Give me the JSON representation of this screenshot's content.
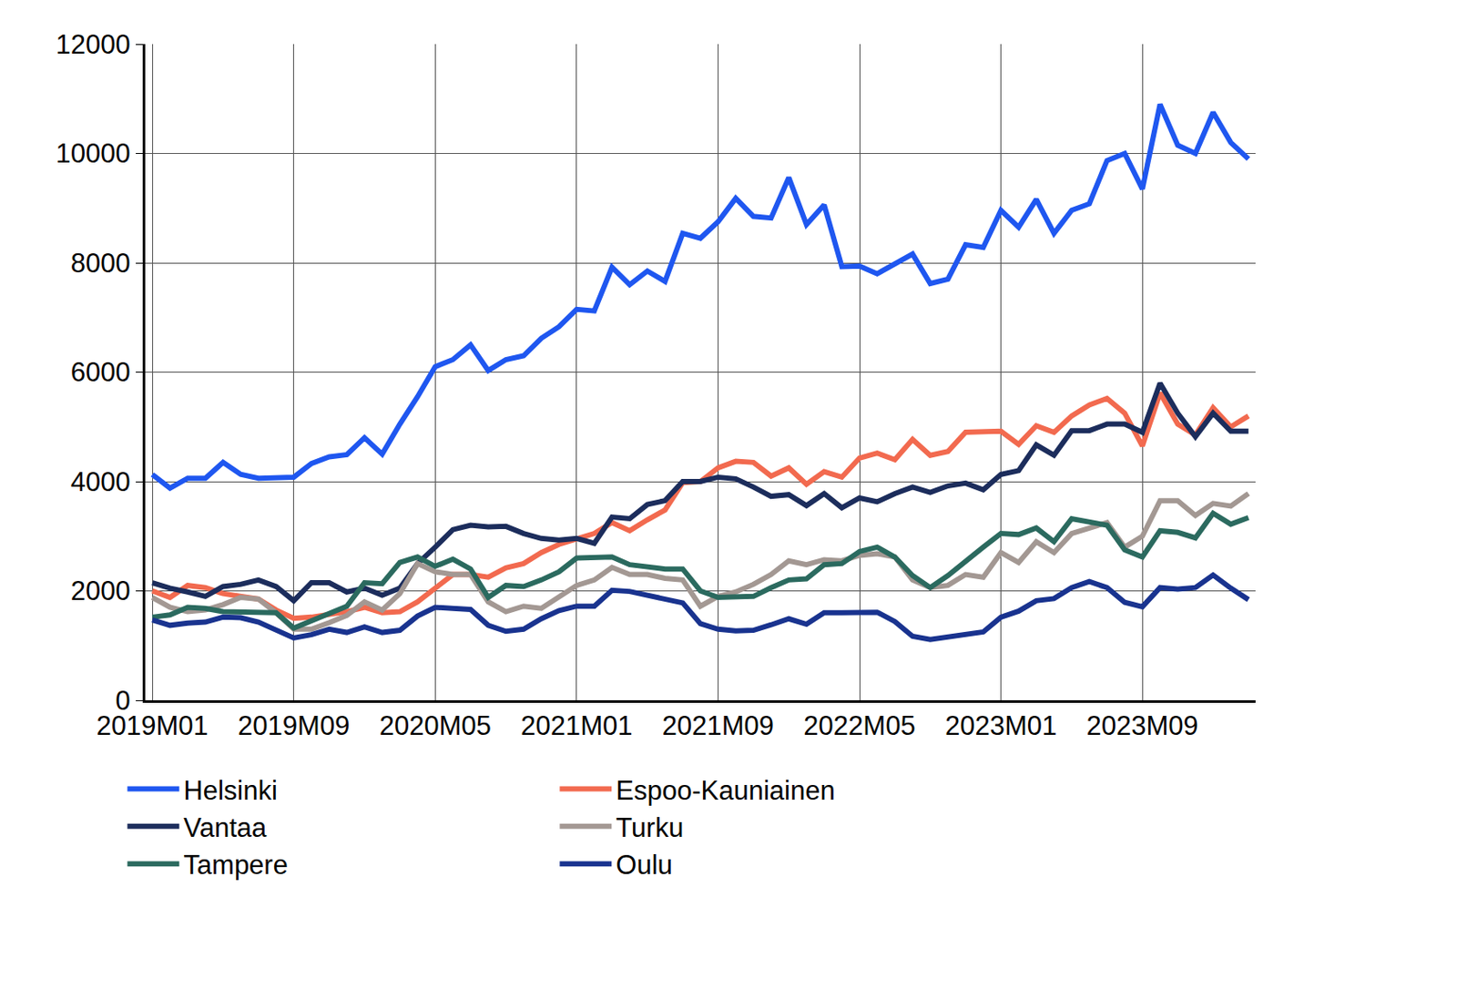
{
  "chart_data": {
    "type": "line",
    "categories": [
      "2019M01",
      null,
      null,
      null,
      null,
      null,
      null,
      null,
      "2019M09",
      null,
      null,
      null,
      null,
      null,
      null,
      null,
      "2020M05",
      null,
      null,
      null,
      null,
      null,
      null,
      null,
      "2021M01",
      null,
      null,
      null,
      null,
      null,
      null,
      null,
      "2021M09",
      null,
      null,
      null,
      null,
      null,
      null,
      null,
      "2022M05",
      null,
      null,
      null,
      null,
      null,
      null,
      null,
      "2023M01",
      null,
      null,
      null,
      null,
      null,
      null,
      null,
      "2023M09",
      null,
      null,
      null,
      null,
      null,
      null
    ],
    "series": [
      {
        "name": "Helsinki",
        "color": "#1f57f0",
        "values": [
          4130,
          3880,
          4060,
          4060,
          4350,
          4130,
          4060,
          4080,
          4080,
          4330,
          4450,
          4490,
          4800,
          4500,
          5050,
          5550,
          6100,
          6230,
          6500,
          6030,
          6230,
          6300,
          6620,
          6830,
          7150,
          7120,
          7920,
          7600,
          7850,
          7660,
          8540,
          8450,
          8750,
          9180,
          8850,
          8820,
          9560,
          8700,
          9060,
          7930,
          7940,
          7800,
          7970,
          8160,
          7620,
          7700,
          8330,
          8280,
          8960,
          8650,
          9160,
          8540,
          8960,
          9080,
          9870,
          10000,
          9350,
          10900,
          10150,
          10000,
          10750,
          10200,
          9900
        ]
      },
      {
        "name": "Espoo-Kauniainen",
        "color": "#f26a4f",
        "values": [
          2000,
          1880,
          2100,
          2060,
          1950,
          1900,
          1850,
          1650,
          1500,
          1520,
          1560,
          1620,
          1700,
          1600,
          1620,
          1800,
          2050,
          2300,
          2300,
          2250,
          2420,
          2500,
          2700,
          2850,
          2950,
          3050,
          3250,
          3100,
          3300,
          3480,
          3980,
          4000,
          4250,
          4370,
          4350,
          4100,
          4250,
          3950,
          4180,
          4080,
          4430,
          4520,
          4400,
          4770,
          4480,
          4550,
          4900,
          4900,
          4920,
          4680,
          5020,
          4900,
          5200,
          5400,
          5520,
          5250,
          4650,
          5620,
          5050,
          4850,
          5350,
          5000,
          5200
        ]
      },
      {
        "name": "Vantaa",
        "color": "#1c2d5c",
        "values": [
          2150,
          2050,
          1980,
          1900,
          2080,
          2120,
          2200,
          2080,
          1820,
          2150,
          2150,
          1980,
          2050,
          1920,
          2050,
          2500,
          2800,
          3120,
          3200,
          3170,
          3180,
          3050,
          2960,
          2930,
          2960,
          2870,
          3350,
          3320,
          3580,
          3650,
          4000,
          4000,
          4080,
          4050,
          3900,
          3730,
          3760,
          3560,
          3780,
          3520,
          3700,
          3630,
          3780,
          3900,
          3800,
          3920,
          3970,
          3850,
          4130,
          4200,
          4670,
          4480,
          4930,
          4930,
          5050,
          5050,
          4900,
          5800,
          5250,
          4820,
          5250,
          4920,
          4920
        ]
      },
      {
        "name": "Turku",
        "color": "#a39893",
        "values": [
          1880,
          1700,
          1620,
          1650,
          1750,
          1880,
          1850,
          1600,
          1300,
          1300,
          1420,
          1550,
          1800,
          1650,
          1950,
          2500,
          2350,
          2300,
          2300,
          1800,
          1620,
          1720,
          1680,
          1900,
          2100,
          2200,
          2430,
          2300,
          2300,
          2230,
          2200,
          1720,
          1900,
          1980,
          2120,
          2300,
          2550,
          2480,
          2570,
          2550,
          2650,
          2680,
          2620,
          2200,
          2060,
          2100,
          2300,
          2250,
          2700,
          2520,
          2900,
          2700,
          3050,
          3150,
          3250,
          2800,
          3000,
          3650,
          3650,
          3380,
          3600,
          3550,
          3780
        ]
      },
      {
        "name": "Tampere",
        "color": "#2b6a5f",
        "values": [
          1520,
          1560,
          1700,
          1680,
          1620,
          1620,
          1620,
          1600,
          1320,
          1450,
          1600,
          1720,
          2150,
          2130,
          2520,
          2620,
          2450,
          2580,
          2400,
          1880,
          2100,
          2080,
          2200,
          2350,
          2600,
          2620,
          2620,
          2480,
          2450,
          2400,
          2400,
          2000,
          1880,
          1890,
          1900,
          2060,
          2200,
          2220,
          2480,
          2500,
          2720,
          2800,
          2620,
          2280,
          2060,
          2280,
          2550,
          2800,
          3050,
          3030,
          3150,
          2900,
          3320,
          3250,
          3200,
          2750,
          2620,
          3100,
          3070,
          2970,
          3420,
          3220,
          3340
        ]
      },
      {
        "name": "Oulu",
        "color": "#19338f",
        "values": [
          1470,
          1370,
          1410,
          1430,
          1520,
          1510,
          1430,
          1290,
          1140,
          1200,
          1300,
          1240,
          1340,
          1240,
          1280,
          1540,
          1700,
          1680,
          1660,
          1370,
          1260,
          1300,
          1490,
          1640,
          1720,
          1720,
          2010,
          1990,
          1920,
          1830,
          1780,
          1400,
          1300,
          1270,
          1280,
          1380,
          1490,
          1390,
          1600,
          1600,
          1600,
          1610,
          1440,
          1170,
          1110,
          1150,
          1200,
          1250,
          1520,
          1630,
          1820,
          1860,
          2060,
          2170,
          2060,
          1790,
          1710,
          2060,
          2030,
          2060,
          2290,
          2050,
          1840
        ]
      }
    ],
    "ylim": [
      0,
      12000
    ],
    "yticks": [
      0,
      2000,
      4000,
      6000,
      8000,
      10000,
      12000
    ],
    "grid": true,
    "legend": "bottom"
  }
}
